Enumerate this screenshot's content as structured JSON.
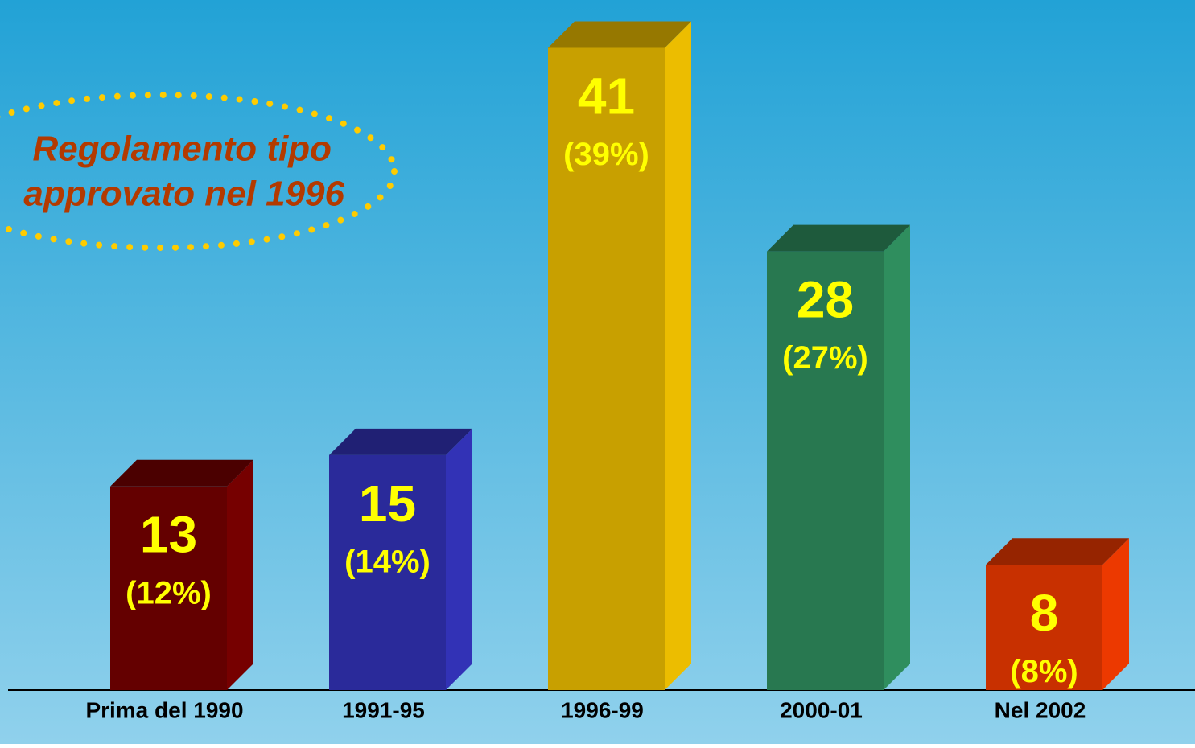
{
  "chart_data": {
    "type": "bar3d",
    "categories": [
      "Prima del 1990",
      "1991-95",
      "1996-99",
      "2000-01",
      "Nel 2002"
    ],
    "values": [
      13,
      15,
      41,
      28,
      8
    ],
    "shares": [
      12,
      14,
      39,
      27,
      8
    ],
    "share_labels": [
      "(12%)",
      "(14%)",
      "(39%)",
      "(27%)",
      "(8%)"
    ],
    "colors": [
      "#640000",
      "#2a2a9a",
      "#c8a000",
      "#287850",
      "#c83000"
    ],
    "ylim": [
      0,
      42
    ],
    "annotation": [
      "Regolamento tipo",
      "approvato nel 1996"
    ]
  }
}
